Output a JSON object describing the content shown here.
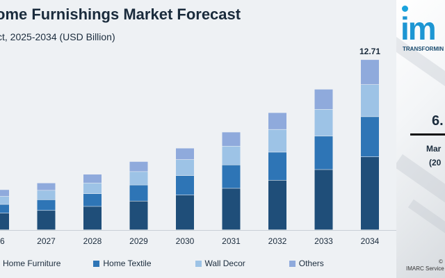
{
  "title": "ome Furnishings Market Forecast",
  "subtitle": "ct, 2025-2034 (USD Billion)",
  "colors": {
    "home_furniture": "#1f4e79",
    "home_textile": "#2e75b6",
    "wall_decor": "#9dc3e6",
    "others": "#8faadc"
  },
  "legend": [
    {
      "label": "Home Furniture",
      "color": "#1f4e79"
    },
    {
      "label": "Home Textile",
      "color": "#2e75b6"
    },
    {
      "label": "Wall Decor",
      "color": "#9dc3e6"
    },
    {
      "label": "Others",
      "color": "#8faadc"
    }
  ],
  "chart_data": {
    "type": "bar",
    "stacked": true,
    "categories": [
      "26",
      "2027",
      "2028",
      "2029",
      "2030",
      "2031",
      "2032",
      "2033",
      "2034"
    ],
    "series": [
      {
        "name": "Home Furniture",
        "values": [
          1.25,
          1.45,
          1.75,
          2.15,
          2.6,
          3.1,
          3.7,
          4.5,
          5.45
        ]
      },
      {
        "name": "Home Textile",
        "values": [
          0.65,
          0.8,
          0.95,
          1.2,
          1.45,
          1.75,
          2.1,
          2.5,
          3.0
        ]
      },
      {
        "name": "Wall Decor",
        "values": [
          0.6,
          0.7,
          0.8,
          1.0,
          1.2,
          1.4,
          1.7,
          2.0,
          2.4
        ]
      },
      {
        "name": "Others",
        "values": [
          0.5,
          0.55,
          0.65,
          0.75,
          0.85,
          1.05,
          1.25,
          1.5,
          1.86
        ]
      }
    ],
    "data_labels": [
      {
        "category": "2034",
        "text": "12.71"
      }
    ],
    "ylim": [
      0,
      15
    ],
    "grid": false,
    "legend_position": "bottom"
  },
  "side_panel": {
    "brand_logo": "im",
    "brand_tagline": "TRANSFORMIN",
    "cagr_value": "6.",
    "cagr_label": "Mar",
    "cagr_period": "(20",
    "copyright": "©",
    "source": "IMARC Service"
  }
}
